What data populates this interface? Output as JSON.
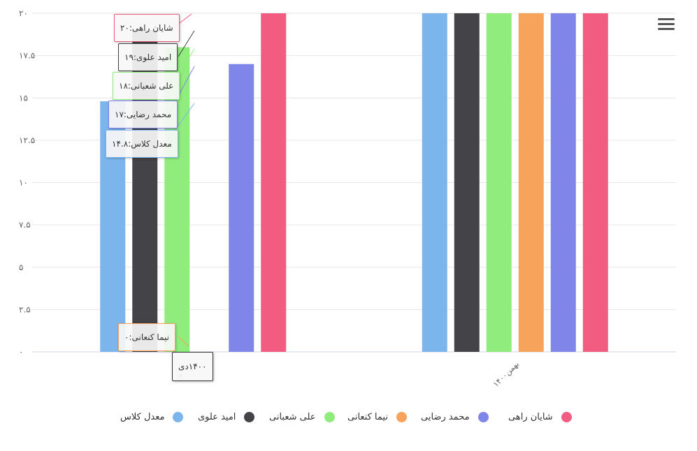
{
  "chart_data": {
    "type": "bar",
    "categories": [
      "۱۴۰۰دی",
      "بهمن۱۴۰۰"
    ],
    "series": [
      {
        "name": "معدل کلاس",
        "color": "#7cb5ec",
        "values": [
          14.8,
          20
        ]
      },
      {
        "name": "امید علوی",
        "color": "#434348",
        "values": [
          19,
          20
        ]
      },
      {
        "name": "علی شعبانی",
        "color": "#90ed7d",
        "values": [
          18,
          20
        ]
      },
      {
        "name": "نیما کنعانی",
        "color": "#f7a35c",
        "values": [
          0,
          20
        ]
      },
      {
        "name": "محمد رضایی",
        "color": "#8085e9",
        "values": [
          17,
          20
        ]
      },
      {
        "name": "شایان راهی",
        "color": "#f15c80",
        "values": [
          20,
          20
        ]
      }
    ],
    "yticks": [
      "۰",
      "۲.۵",
      "۵",
      "۷.۵",
      "۱۰",
      "۱۲.۵",
      "۱۵",
      "۱۷.۵",
      "۲۰"
    ],
    "ylim": [
      0,
      20
    ],
    "grid": true,
    "legend_position": "bottom-center",
    "title": "",
    "xlabel": "",
    "ylabel": ""
  },
  "tooltips": [
    {
      "series": 5,
      "category": 0,
      "text": "شایان راهی:۲۰"
    },
    {
      "series": 1,
      "category": 0,
      "text": "امید علوی:۱۹"
    },
    {
      "series": 2,
      "category": 0,
      "text": "علی شعبانی:۱۸"
    },
    {
      "series": 4,
      "category": 0,
      "text": "محمد رضایی:۱۷"
    },
    {
      "series": 0,
      "category": 0,
      "text": "معدل کلاس:۱۴.۸"
    },
    {
      "series": 3,
      "category": 0,
      "text": "نیما کنعانی:۰"
    }
  ],
  "axis_tooltip": "۱۴۰۰دی",
  "menu_icon": "hamburger-menu-icon"
}
